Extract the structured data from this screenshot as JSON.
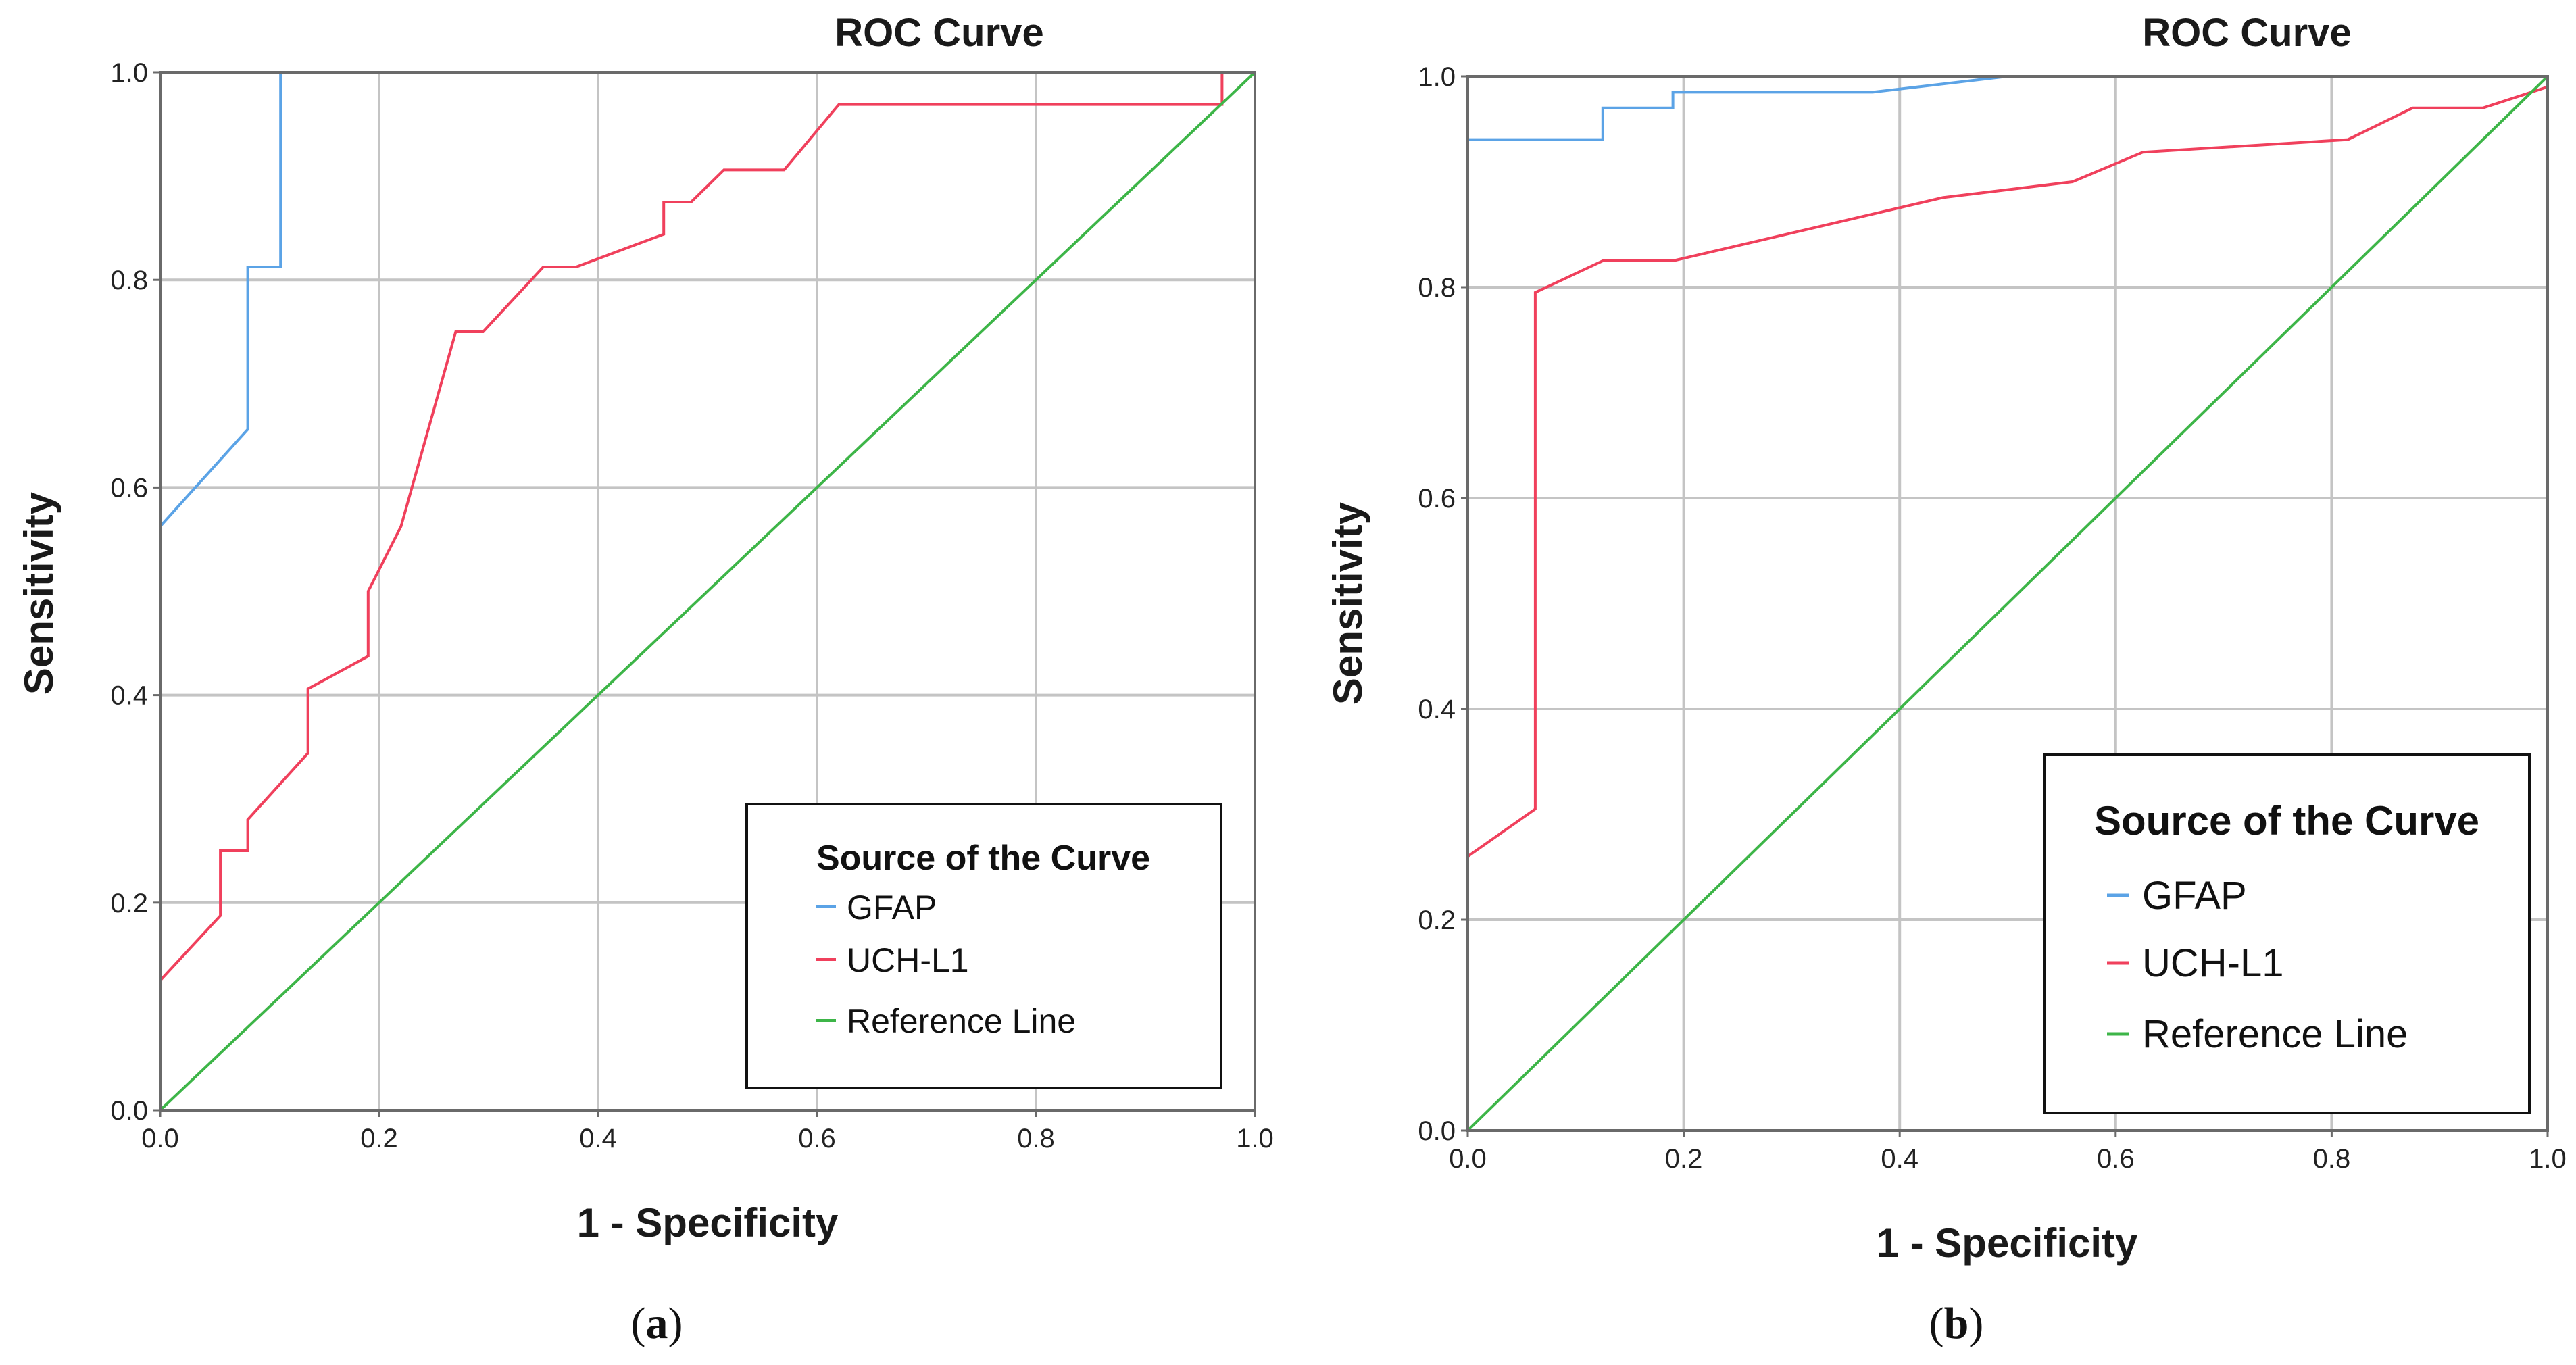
{
  "panels": [
    {
      "id": "a",
      "panel_label": "a",
      "legend_title": "Source of the Curve"
    },
    {
      "id": "b",
      "panel_label": "b",
      "legend_title": "Source of the Curve"
    }
  ],
  "colors": {
    "gfap": "#5ba3e6",
    "uchl1": "#f0405c",
    "reference": "#3db548",
    "grid": "#c4c4c4",
    "axis": "#6a6a6a"
  },
  "chart_data": [
    {
      "type": "line",
      "title": "ROC Curve",
      "xlabel": "1 - Specificity",
      "ylabel": "Sensitivity",
      "xlim": [
        0,
        1
      ],
      "ylim": [
        0,
        1
      ],
      "grid": true,
      "legend_position": "bottom-right",
      "x_ticks": [
        "0.0",
        "0.2",
        "0.4",
        "0.6",
        "0.8",
        "1.0"
      ],
      "y_ticks": [
        "0.0",
        "0.2",
        "0.4",
        "0.6",
        "0.8",
        "1.0"
      ],
      "series": [
        {
          "name": "GFAP",
          "color_key": "gfap",
          "points": [
            [
              0,
              0
            ],
            [
              0,
              0.125
            ],
            [
              0,
              0.5625
            ],
            [
              0.08,
              0.656
            ],
            [
              0.08,
              0.8125
            ],
            [
              0.11,
              0.8125
            ],
            [
              0.11,
              1.0
            ],
            [
              1.0,
              1.0
            ]
          ]
        },
        {
          "name": "UCH-L1",
          "color_key": "uchl1",
          "points": [
            [
              0,
              0
            ],
            [
              0,
              0.125
            ],
            [
              0.055,
              0.1875
            ],
            [
              0.055,
              0.25
            ],
            [
              0.08,
              0.25
            ],
            [
              0.08,
              0.28
            ],
            [
              0.135,
              0.344
            ],
            [
              0.135,
              0.406
            ],
            [
              0.19,
              0.4375
            ],
            [
              0.19,
              0.5
            ],
            [
              0.22,
              0.5625
            ],
            [
              0.27,
              0.75
            ],
            [
              0.295,
              0.75
            ],
            [
              0.35,
              0.8125
            ],
            [
              0.38,
              0.8125
            ],
            [
              0.46,
              0.844
            ],
            [
              0.46,
              0.875
            ],
            [
              0.485,
              0.875
            ],
            [
              0.515,
              0.906
            ],
            [
              0.57,
              0.906
            ],
            [
              0.62,
              0.969
            ],
            [
              0.97,
              0.969
            ],
            [
              0.97,
              1.0
            ],
            [
              1.0,
              1.0
            ]
          ]
        },
        {
          "name": "Reference Line",
          "color_key": "reference",
          "points": [
            [
              0,
              0
            ],
            [
              1,
              1
            ]
          ]
        }
      ]
    },
    {
      "type": "line",
      "title": "ROC Curve",
      "xlabel": "1 - Specificity",
      "ylabel": "Sensitivity",
      "xlim": [
        0,
        1
      ],
      "ylim": [
        0,
        1
      ],
      "grid": true,
      "legend_position": "bottom-right",
      "x_ticks": [
        "0.0",
        "0.2",
        "0.4",
        "0.6",
        "0.8",
        "1.0"
      ],
      "y_ticks": [
        "0.0",
        "0.2",
        "0.4",
        "0.6",
        "0.8",
        "1.0"
      ],
      "series": [
        {
          "name": "GFAP",
          "color_key": "gfap",
          "points": [
            [
              0,
              0
            ],
            [
              0,
              0.94
            ],
            [
              0.125,
              0.94
            ],
            [
              0.125,
              0.97
            ],
            [
              0.19,
              0.97
            ],
            [
              0.19,
              0.985
            ],
            [
              0.375,
              0.985
            ],
            [
              0.5,
              1.0
            ],
            [
              1.0,
              1.0
            ]
          ]
        },
        {
          "name": "UCH-L1",
          "color_key": "uchl1",
          "points": [
            [
              0,
              0
            ],
            [
              0,
              0.26
            ],
            [
              0.0625,
              0.305
            ],
            [
              0.0625,
              0.795
            ],
            [
              0.125,
              0.825
            ],
            [
              0.19,
              0.825
            ],
            [
              0.44,
              0.885
            ],
            [
              0.56,
              0.9
            ],
            [
              0.625,
              0.928
            ],
            [
              0.815,
              0.94
            ],
            [
              0.875,
              0.97
            ],
            [
              0.94,
              0.97
            ],
            [
              1.0,
              0.99
            ]
          ]
        },
        {
          "name": "Reference Line",
          "color_key": "reference",
          "points": [
            [
              0,
              0
            ],
            [
              1,
              1
            ]
          ]
        }
      ]
    }
  ]
}
